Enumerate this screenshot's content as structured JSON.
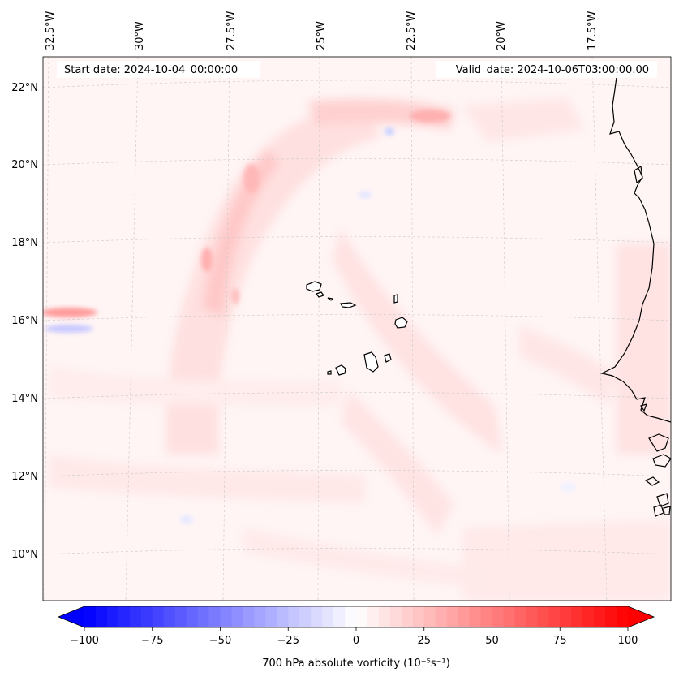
{
  "map": {
    "start_label": "Start date: 2024-10-04_00:00:00",
    "valid_label": "Valid_date: 2024-10-06T03:00:00.00",
    "lon_labels": [
      "32.5°W",
      "30°W",
      "27.5°W",
      "25°W",
      "22.5°W",
      "20°W",
      "17.5°W"
    ],
    "lat_labels": [
      "22°N",
      "20°N",
      "18°N",
      "16°N",
      "14°N",
      "12°N",
      "10°N"
    ],
    "field": "700 hPa absolute vorticity",
    "region": "Cabo Verde and West African coast"
  },
  "colorbar": {
    "label": "700 hPa absolute vorticity (10⁻⁵s⁻¹)",
    "ticks": [
      "−100",
      "−75",
      "−50",
      "−25",
      "0",
      "25",
      "50",
      "75",
      "100"
    ],
    "min": -100,
    "max": 100,
    "levels": 48,
    "low_color": "#0000ff",
    "mid_color": "#ffffff",
    "high_color": "#ff0000"
  }
}
